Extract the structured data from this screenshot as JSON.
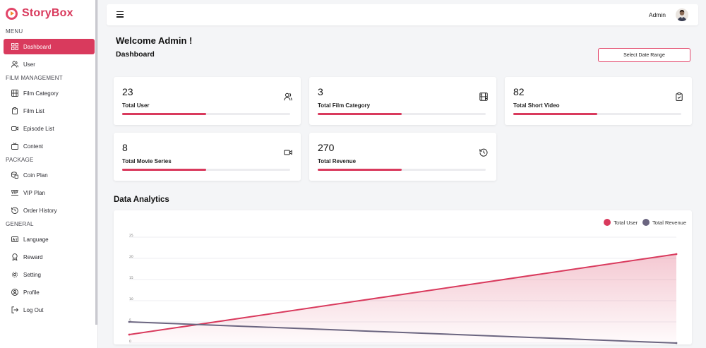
{
  "app": {
    "name": "StoryBox"
  },
  "sidebar": {
    "sections": {
      "menu": "MENU",
      "film": "FILM MANAGEMENT",
      "package": "PACKAGE",
      "general": "GENERAL"
    },
    "items": [
      {
        "label": "Dashboard",
        "icon": "dashboard-grid-icon",
        "active": true
      },
      {
        "label": "User",
        "icon": "users-icon"
      },
      {
        "label": "Film Category",
        "icon": "film-icon"
      },
      {
        "label": "Film List",
        "icon": "clipboard-icon"
      },
      {
        "label": "Episode List",
        "icon": "video-icon"
      },
      {
        "label": "Content",
        "icon": "tv-icon"
      },
      {
        "label": "Coin Plan",
        "icon": "coins-icon"
      },
      {
        "label": "VIP Plan",
        "icon": "vip-icon"
      },
      {
        "label": "Order History",
        "icon": "history-icon"
      },
      {
        "label": "Language",
        "icon": "language-icon"
      },
      {
        "label": "Reward",
        "icon": "award-icon"
      },
      {
        "label": "Setting",
        "icon": "gear-icon"
      },
      {
        "label": "Profile",
        "icon": "profile-icon"
      },
      {
        "label": "Log Out",
        "icon": "logout-icon"
      }
    ]
  },
  "header": {
    "admin_name": "Admin"
  },
  "main": {
    "welcome": "Welcome Admin !",
    "title": "Dashboard",
    "date_range_button": "Select Date Range"
  },
  "cards": [
    {
      "value": "23",
      "label": "Total User",
      "icon": "users-icon",
      "progress": 0.5
    },
    {
      "value": "3",
      "label": "Total Film Category",
      "icon": "film-icon",
      "progress": 0.5
    },
    {
      "value": "82",
      "label": "Total Short Video",
      "icon": "clipboard-icon",
      "progress": 0.5
    },
    {
      "value": "8",
      "label": "Total Movie Series",
      "icon": "video-icon",
      "progress": 0.5
    },
    {
      "value": "270",
      "label": "Total Revenue",
      "icon": "history-icon",
      "progress": 0.5
    }
  ],
  "analytics": {
    "title": "Data Analytics"
  },
  "colors": {
    "accent": "#d93a5d",
    "revenue": "#6b6580"
  },
  "chart_data": {
    "type": "line",
    "x": [
      0,
      1
    ],
    "series": [
      {
        "name": "Total User",
        "values": [
          2,
          21
        ],
        "color": "#d93a5d",
        "area": true
      },
      {
        "name": "Total Revenue",
        "values": [
          5,
          0
        ],
        "color": "#6b6580",
        "area": false
      }
    ],
    "yticks": [
      "25",
      "20",
      "15",
      "10",
      "5",
      "0"
    ],
    "ylim": [
      0,
      25
    ],
    "grid": true,
    "legend": "top-right"
  }
}
